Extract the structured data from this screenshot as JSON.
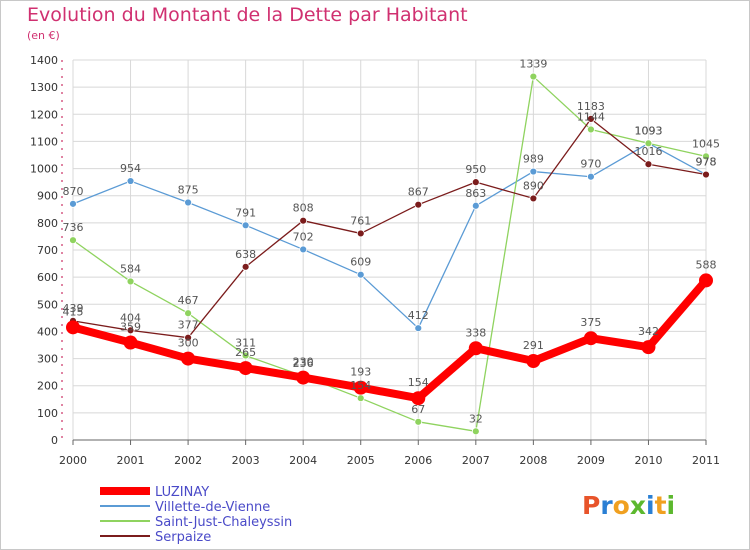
{
  "title": "Evolution du Montant de la Dette par Habitant",
  "unit": "(en €)",
  "logo": [
    "P",
    "r",
    "o",
    "x",
    "i",
    "t",
    "i"
  ],
  "logo_colors": [
    "#e8542a",
    "#2a7fd4",
    "#f0a020",
    "#5cb82e",
    "#2a7fd4",
    "#f0a020",
    "#5cb82e"
  ],
  "chart_data": {
    "type": "line",
    "x": [
      "2000",
      "2001",
      "2002",
      "2003",
      "2004",
      "2005",
      "2006",
      "2007",
      "2008",
      "2009",
      "2010",
      "2011"
    ],
    "ylim": [
      0,
      1400
    ],
    "yticks": [
      0,
      100,
      200,
      300,
      400,
      500,
      600,
      700,
      800,
      900,
      1000,
      1100,
      1200,
      1300,
      1400
    ],
    "grid": true,
    "legend_position": "bottom-left",
    "series": [
      {
        "name": "Villette-de-Vienne",
        "color": "#5b9bd5",
        "values": [
          870,
          954,
          875,
          791,
          702,
          609,
          412,
          863,
          989,
          970,
          1093,
          978
        ]
      },
      {
        "name": "Saint-Just-Chaleyssin",
        "color": "#8fd35f",
        "values": [
          736,
          584,
          467,
          311,
          236,
          154,
          67,
          32,
          1339,
          1144,
          1093,
          1045
        ]
      },
      {
        "name": "Serpaize",
        "color": "#7b1c1c",
        "values": [
          439,
          404,
          377,
          638,
          808,
          761,
          867,
          950,
          890,
          1183,
          1016,
          978
        ]
      },
      {
        "name": "LUZINAY",
        "color": "#ff0000",
        "values": [
          415,
          359,
          300,
          265,
          230,
          193,
          154,
          338,
          291,
          375,
          342,
          588
        ]
      }
    ]
  }
}
